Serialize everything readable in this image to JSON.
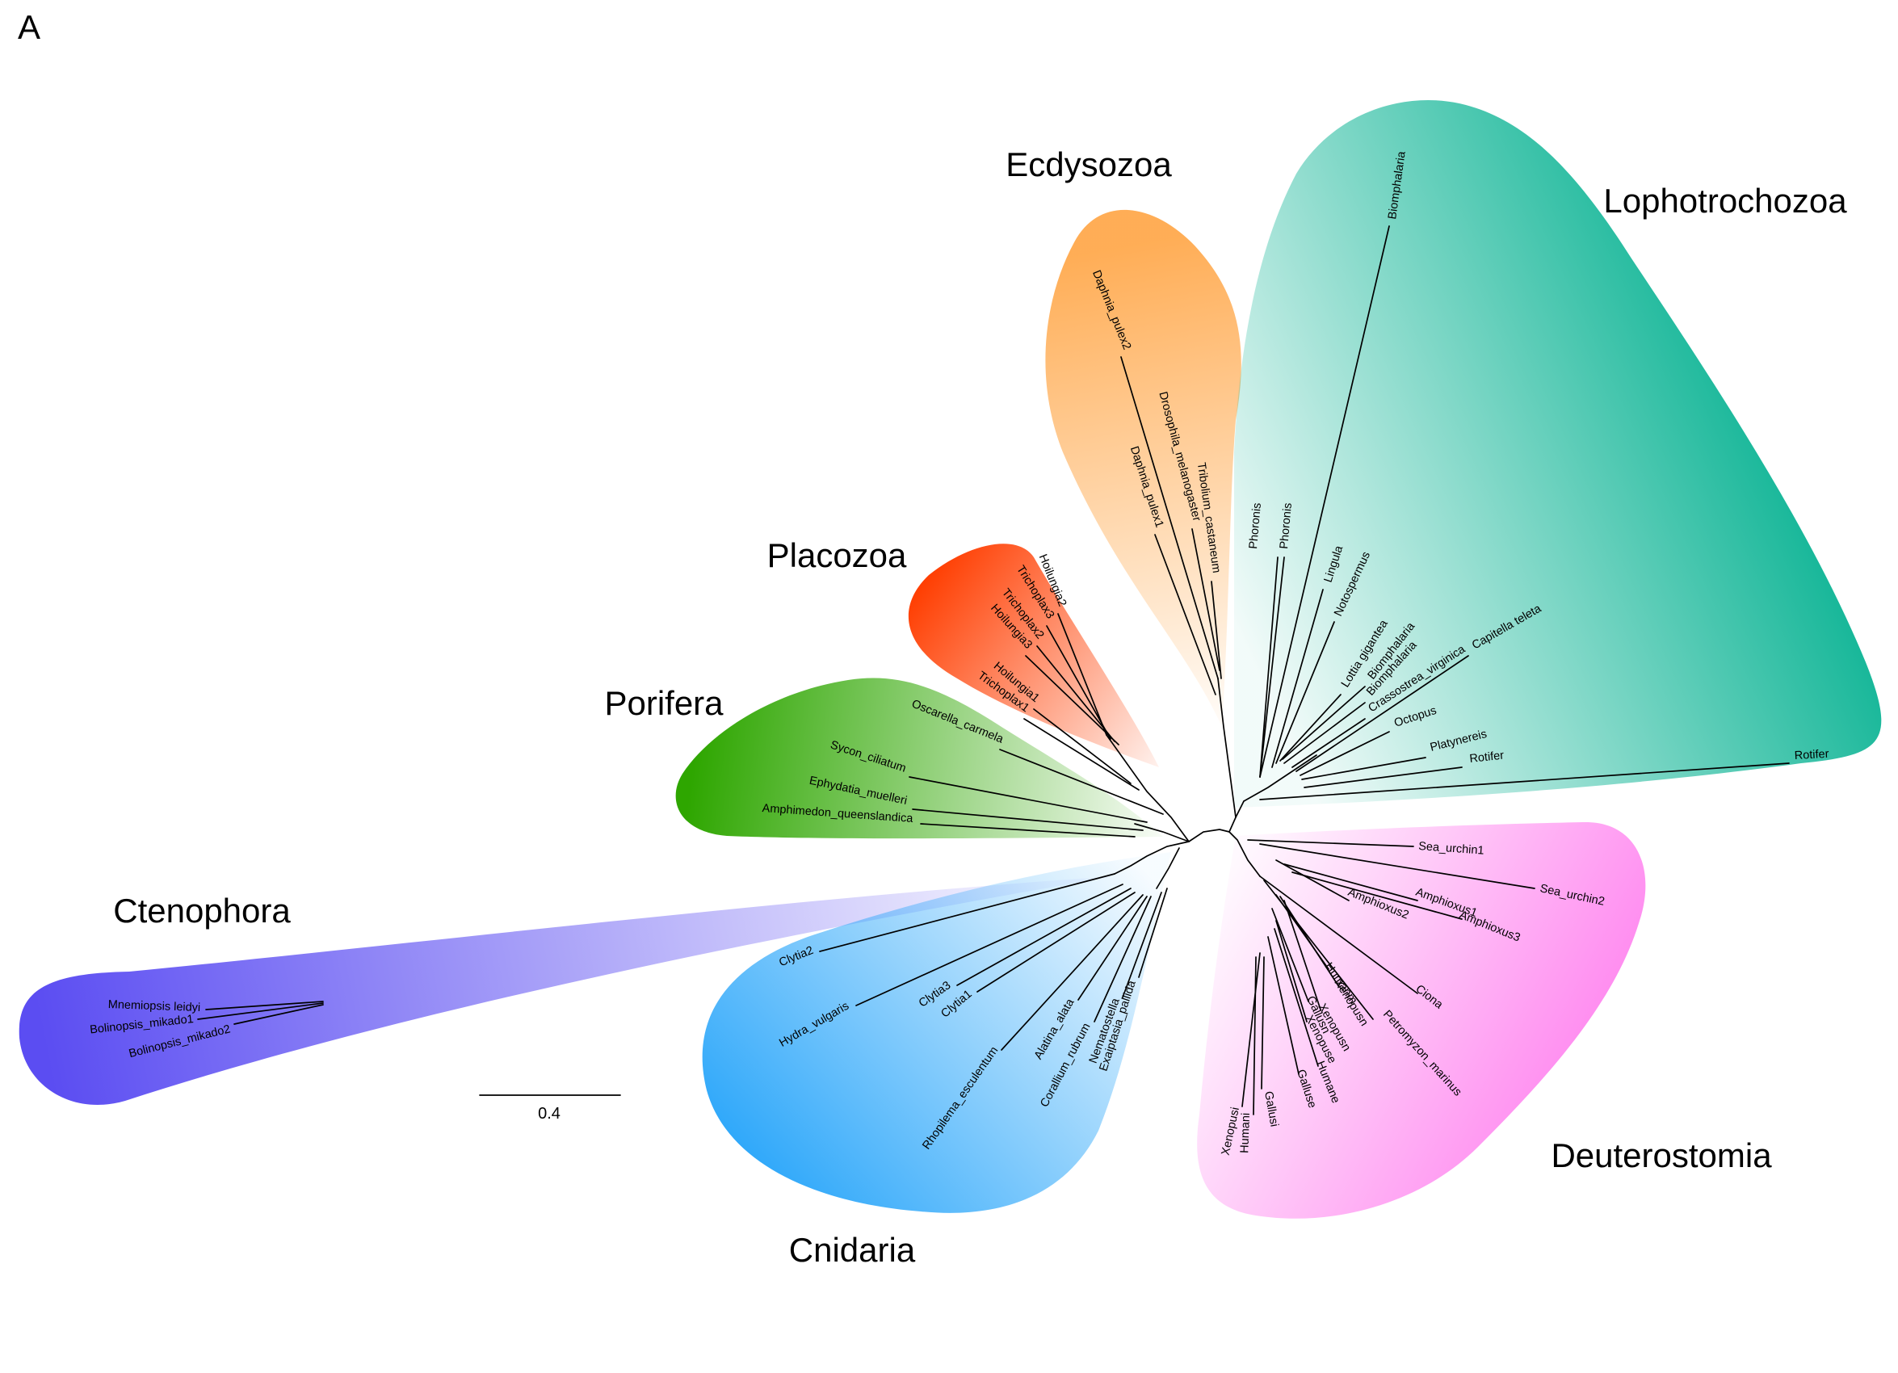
{
  "panel_label": "A",
  "scale_bar": {
    "value": "0.4"
  },
  "clades": [
    {
      "key": "ecdysozoa",
      "label": "Ecdysozoa",
      "color": "#FFA94D"
    },
    {
      "key": "lophotrochozoa",
      "label": "Lophotrochozoa",
      "color": "#00B08F"
    },
    {
      "key": "placozoa",
      "label": "Placozoa",
      "color": "#FF3D00"
    },
    {
      "key": "porifera",
      "label": "Porifera",
      "color": "#2EA600"
    },
    {
      "key": "ctenophora",
      "label": "Ctenophora",
      "color": "#5B4DF2"
    },
    {
      "key": "cnidaria",
      "label": "Cnidaria",
      "color": "#2FA8FA"
    },
    {
      "key": "deuterostomia",
      "label": "Deuterostomia",
      "color": "#FF8CF0"
    }
  ],
  "leaves": [
    "Biomphalaria",
    "Phoronis",
    "Phoronis",
    "Lingula",
    "Notospermus",
    "Lottia gigantea",
    "Biomphalaria",
    "Biomphalaria",
    "Crassostrea_virginica",
    "Capitella teleta",
    "Octopus",
    "Platynereis",
    "Rotifer",
    "Rotifer",
    "Daphnia_pulex2",
    "Drosophila_melanogaster",
    "Tribolium_castaneum",
    "Daphnia_pulex1",
    "Hoilungia2",
    "Trichoplax3",
    "Trichoplax2",
    "Hoilungia3",
    "Hoilungia1",
    "Trichoplax1",
    "Oscarella_carmela",
    "Sycon_ciliatum",
    "Ephydatia_muelleri",
    "Amphimedon_queenslandica",
    "Mnemiopsis leidyi",
    "Bolinopsis_mikado1",
    "Bolinopsis_mikado2",
    "Clytia2",
    "Hydra_vulgaris",
    "Clytia3",
    "Clytia1",
    "Rhopilema_esculentum",
    "Alatina_alata",
    "Corallium_rubrum",
    "Nematostella",
    "Exaiptasia_pallida",
    "Sea_urchin1",
    "Sea_urchin2",
    "Amphioxus2",
    "Amphioxus1",
    "Amphioxus3",
    "Ciona",
    "Petromyzon_marinus",
    "Humanm",
    "Xenopusn",
    "Xenopusn",
    "Gallusn",
    "Xenopuse",
    "Humane",
    "Galluse",
    "Xenopusi",
    "Humani",
    "Gallusi"
  ]
}
